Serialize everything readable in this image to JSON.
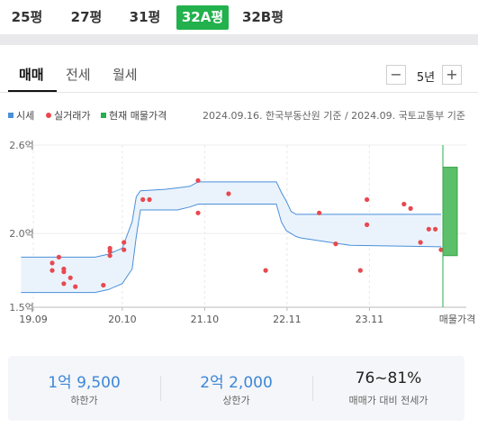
{
  "size_tabs": [
    {
      "label": "25평",
      "active": false
    },
    {
      "label": "27평",
      "active": false
    },
    {
      "label": "31평",
      "active": false
    },
    {
      "label": "32A평",
      "active": true
    },
    {
      "label": "32B평",
      "active": false
    }
  ],
  "deal_tabs": [
    {
      "label": "매매",
      "active": true
    },
    {
      "label": "전세",
      "active": false
    },
    {
      "label": "월세",
      "active": false
    }
  ],
  "period": {
    "minus_icon": "minus-icon",
    "value": "5년",
    "plus_icon": "plus-icon"
  },
  "legend": {
    "items": [
      {
        "label": "시세",
        "color": "#4a90d9"
      },
      {
        "label": "실거래가",
        "color": "#e8484f"
      },
      {
        "label": "현재 매물가격",
        "color": "#22b14c"
      }
    ],
    "source": "2024.09.16. 한국부동산원 기준 / 2024.09. 국토교통부 기준"
  },
  "chart_data": {
    "type": "line",
    "ylim": [
      1.5,
      2.6
    ],
    "yticks": [
      {
        "value": 2.6,
        "label": "2.6억"
      },
      {
        "value": 2.0,
        "label": "2.0억"
      },
      {
        "value": 1.5,
        "label": "1.5억"
      }
    ],
    "xlim": [
      2019.75,
      2024.7
    ],
    "xticks": [
      {
        "value": 2019.75,
        "label": "19.09"
      },
      {
        "value": 2020.83,
        "label": "20.10"
      },
      {
        "value": 2021.83,
        "label": "21.10"
      },
      {
        "value": 2022.83,
        "label": "22.11"
      },
      {
        "value": 2023.83,
        "label": "23.11"
      }
    ],
    "market_price_label": "매물가격",
    "series": [
      {
        "kind": "band",
        "color": "#4a90d9",
        "x": [
          2019.6,
          2020.5,
          2020.66,
          2020.83,
          2020.95,
          2021.0,
          2021.05,
          2021.35,
          2021.5,
          2021.65,
          2021.75,
          2022.3,
          2022.7,
          2022.76,
          2022.82,
          2022.88,
          2022.94,
          2023.0,
          2023.6,
          2024.7
        ],
        "upper": [
          1.84,
          1.84,
          1.86,
          1.9,
          2.08,
          2.25,
          2.29,
          2.3,
          2.31,
          2.32,
          2.35,
          2.35,
          2.35,
          2.28,
          2.22,
          2.15,
          2.13,
          2.13,
          2.13,
          2.13
        ],
        "lower": [
          1.6,
          1.6,
          1.62,
          1.66,
          1.76,
          1.98,
          2.16,
          2.16,
          2.16,
          2.18,
          2.2,
          2.2,
          2.2,
          2.08,
          2.02,
          2.0,
          1.98,
          1.97,
          1.92,
          1.91
        ]
      },
      {
        "kind": "points",
        "name": "실거래가",
        "color": "#e8484f",
        "points": [
          [
            2019.98,
            1.8
          ],
          [
            2019.98,
            1.75
          ],
          [
            2020.06,
            1.84
          ],
          [
            2020.12,
            1.76
          ],
          [
            2020.12,
            1.74
          ],
          [
            2020.12,
            1.66
          ],
          [
            2020.2,
            1.7
          ],
          [
            2020.26,
            1.64
          ],
          [
            2020.6,
            1.65
          ],
          [
            2020.68,
            1.9
          ],
          [
            2020.68,
            1.88
          ],
          [
            2020.68,
            1.85
          ],
          [
            2020.85,
            1.94
          ],
          [
            2020.85,
            1.89
          ],
          [
            2021.08,
            2.23
          ],
          [
            2021.16,
            2.23
          ],
          [
            2021.75,
            2.36
          ],
          [
            2021.75,
            2.14
          ],
          [
            2022.12,
            2.27
          ],
          [
            2022.57,
            1.75
          ],
          [
            2023.22,
            2.14
          ],
          [
            2023.42,
            1.93
          ],
          [
            2023.72,
            1.75
          ],
          [
            2023.8,
            2.06
          ],
          [
            2023.8,
            2.23
          ],
          [
            2024.25,
            2.2
          ],
          [
            2024.33,
            2.17
          ],
          [
            2024.45,
            1.94
          ],
          [
            2024.55,
            2.03
          ],
          [
            2024.63,
            2.03
          ],
          [
            2024.7,
            1.89
          ]
        ]
      },
      {
        "kind": "range-bar",
        "name": "현재 매물가격",
        "color": "#5cbf6a",
        "low": 1.85,
        "high": 2.45
      }
    ]
  },
  "summary": [
    {
      "value": "1억 9,500",
      "label": "하한가",
      "accent": true
    },
    {
      "value": "2억 2,000",
      "label": "상한가",
      "accent": true
    },
    {
      "value": "76~81%",
      "label": "매매가 대비 전세가",
      "accent": false
    }
  ]
}
